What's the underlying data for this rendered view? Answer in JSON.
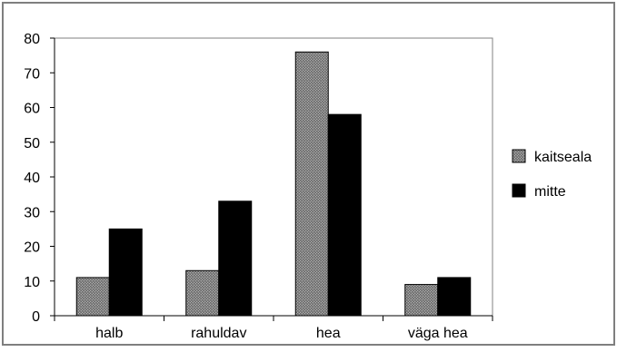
{
  "chart_data": {
    "type": "bar",
    "categories": [
      "halb",
      "rahuldav",
      "hea",
      "väga hea"
    ],
    "series": [
      {
        "name": "kaitseala",
        "values": [
          11,
          13,
          76,
          9
        ],
        "color": "#8c8c8c",
        "pattern": "crosshatch-gray"
      },
      {
        "name": "mitte",
        "values": [
          25,
          33,
          58,
          11
        ],
        "color": "#000000",
        "pattern": "solid"
      }
    ],
    "ylim": [
      0,
      80
    ],
    "yticks": [
      0,
      10,
      20,
      30,
      40,
      50,
      60,
      70,
      80
    ],
    "grid": false,
    "legend": "right",
    "title": "",
    "xlabel": "",
    "ylabel": ""
  }
}
